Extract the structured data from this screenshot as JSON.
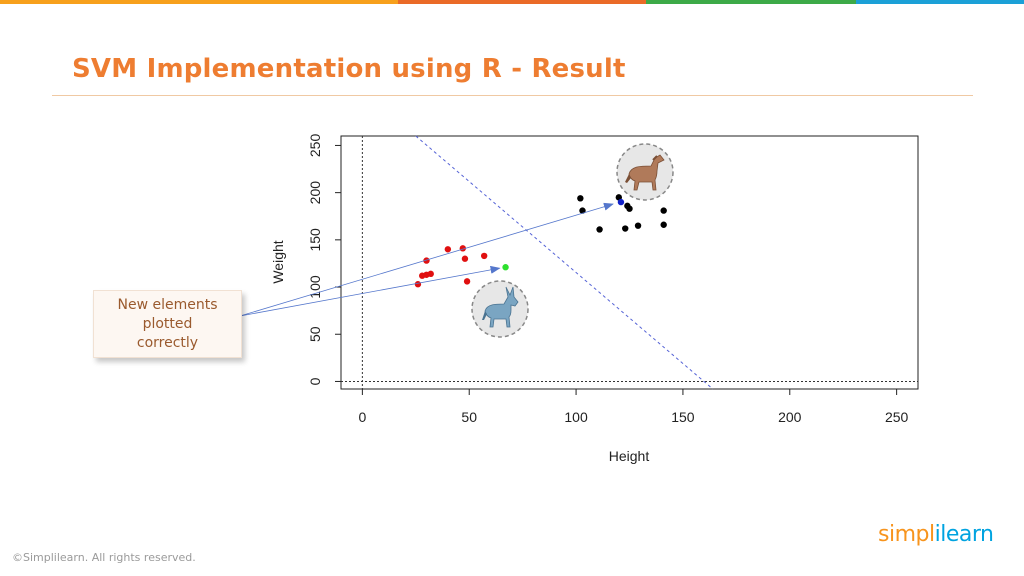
{
  "colors": {
    "accent": "#ee7d31",
    "topbar": [
      "#f7a01c",
      "#ea6a27",
      "#3daa48",
      "#1ba0d7"
    ],
    "class_a": "#e01010",
    "class_b": "#000000",
    "new_a": "#2ee02e",
    "new_b": "#1020c8",
    "boundary": "#5563d6",
    "arrows": "#5577cc"
  },
  "slide": {
    "title": "SVM Implementation using R - Result",
    "callout_lines": [
      "New elements",
      "plotted",
      "correctly"
    ],
    "copyright": "©Simplilearn. All rights reserved.",
    "logo_part1": "simpl",
    "logo_part2": "ilearn"
  },
  "icons": {
    "upper_icon": "horse-icon",
    "lower_icon": "donkey-icon"
  },
  "chart_data": {
    "type": "scatter",
    "title": "",
    "xlabel": "Height",
    "ylabel": "Weight",
    "xlim": [
      -10,
      260
    ],
    "ylim": [
      -8,
      260
    ],
    "xticks": [
      0,
      50,
      100,
      150,
      200,
      250
    ],
    "yticks": [
      0,
      50,
      100,
      150,
      200,
      250
    ],
    "grid": false,
    "reference_lines": {
      "x": 0,
      "y": 0,
      "style": "dotted"
    },
    "decision_boundary": {
      "x1": 25,
      "y1": 260,
      "x2": 164,
      "y2": -8,
      "style": "dashed"
    },
    "series": [
      {
        "color": "red",
        "points": [
          [
            26,
            103
          ],
          [
            28,
            112
          ],
          [
            30,
            113
          ],
          [
            32,
            114
          ],
          [
            30,
            128
          ],
          [
            40,
            140
          ],
          [
            47,
            141
          ],
          [
            48,
            130
          ],
          [
            49,
            106
          ],
          [
            57,
            133
          ]
        ]
      },
      {
        "color": "black",
        "points": [
          [
            102,
            194
          ],
          [
            103,
            181
          ],
          [
            111,
            161
          ],
          [
            120,
            195
          ],
          [
            123,
            162
          ],
          [
            124,
            186
          ],
          [
            125,
            183
          ],
          [
            129,
            165
          ],
          [
            141,
            181
          ],
          [
            141,
            166
          ]
        ]
      },
      {
        "color": "green",
        "points": [
          [
            67,
            121
          ]
        ]
      },
      {
        "color": "blue",
        "points": [
          [
            121,
            190
          ]
        ]
      }
    ]
  }
}
